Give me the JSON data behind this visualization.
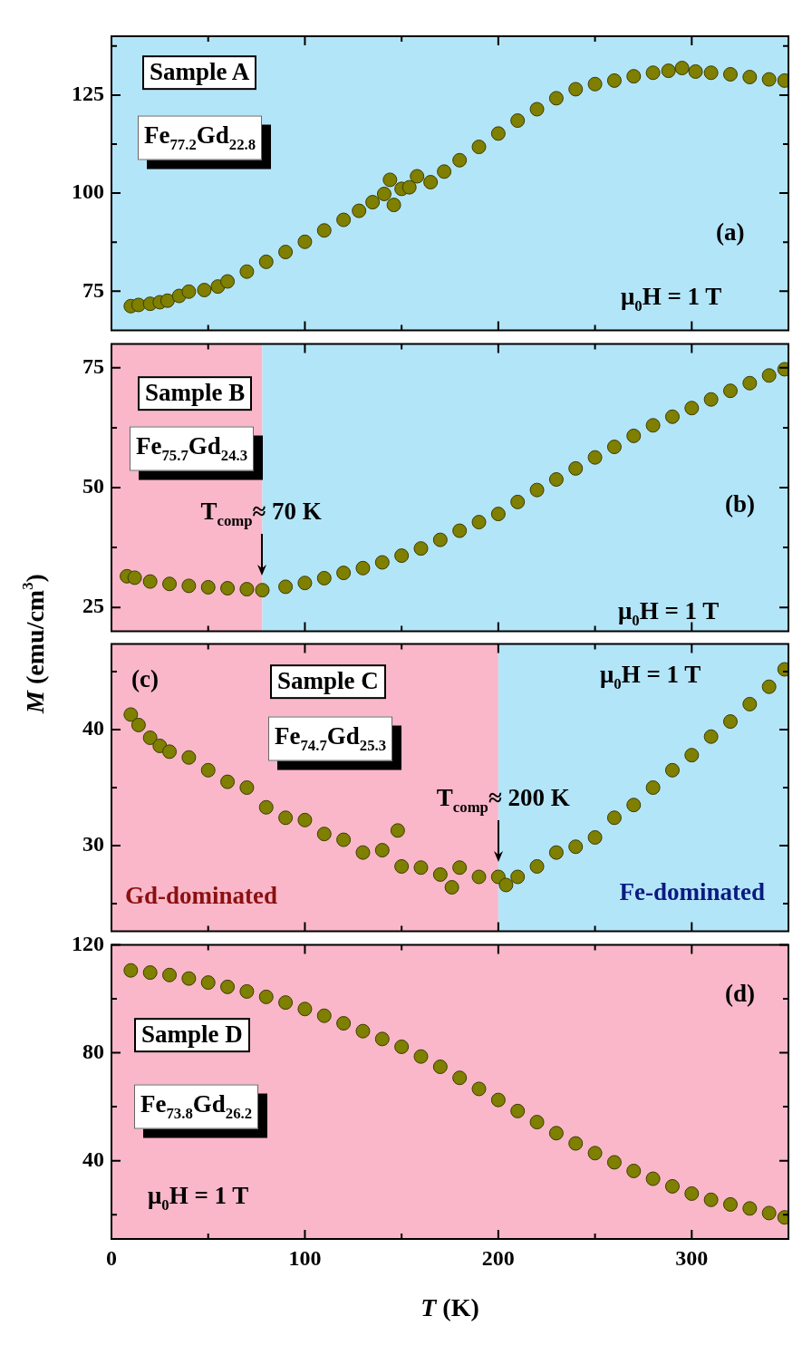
{
  "chart_data": [
    {
      "type": "scatter",
      "x": [
        10,
        14,
        20,
        25,
        29,
        35,
        40,
        48,
        55,
        60,
        70,
        80,
        90,
        100,
        110,
        120,
        128,
        135,
        141,
        144,
        146,
        150,
        154,
        158,
        165,
        172,
        180,
        190,
        200,
        210,
        220,
        230,
        240,
        250,
        260,
        270,
        280,
        288,
        295,
        302,
        310,
        320,
        330,
        340,
        348
      ],
      "series": [
        {
          "color": "#7f7f00",
          "values": [
            71.2,
            71.5,
            71.8,
            72.2,
            72.6,
            73.8,
            74.9,
            75.3,
            76.2,
            77.5,
            80.0,
            82.5,
            85.0,
            87.6,
            90.5,
            93.2,
            95.5,
            97.7,
            99.8,
            103.4,
            97.0,
            101.1,
            101.5,
            104.3,
            102.8,
            105.5,
            108.4,
            111.8,
            115.2,
            118.5,
            121.4,
            124.2,
            126.5,
            127.8,
            128.7,
            129.8,
            130.7,
            131.2,
            131.9,
            131.0,
            130.7,
            130.3,
            129.6,
            129.0,
            128.7
          ]
        }
      ],
      "xlim": [
        0,
        350
      ],
      "xticks": [
        0,
        {
          "value": 50,
          "label": null
        },
        100,
        {
          "value": 150,
          "label": null
        },
        200,
        {
          "value": 250,
          "label": null
        },
        300
      ],
      "ylim": [
        65,
        140
      ],
      "yticks": [
        75,
        {
          "value": 87.5,
          "label": null
        },
        100,
        {
          "value": 112.5,
          "label": null
        },
        125,
        {
          "value": 137.5,
          "label": null
        }
      ],
      "tick_labels": "y",
      "marker": "circle",
      "bands": [
        {
          "axis": "x",
          "from": 0,
          "to": 350,
          "color": "#b3e5f8"
        }
      ],
      "annotations": [
        "Sample A",
        "Fe$_{77.2}$Gd$_{22.8}$",
        "(a)",
        "μ$_{0}$H  = 1 T"
      ]
    },
    {
      "type": "scatter",
      "x": [
        8,
        12,
        20,
        30,
        40,
        50,
        60,
        70,
        78,
        90,
        100,
        110,
        120,
        130,
        140,
        150,
        160,
        170,
        180,
        190,
        200,
        210,
        220,
        230,
        240,
        250,
        260,
        270,
        280,
        290,
        300,
        310,
        320,
        330,
        340,
        348
      ],
      "series": [
        {
          "color": "#7f7f00",
          "values": [
            31.5,
            31.2,
            30.4,
            29.9,
            29.5,
            29.2,
            29.0,
            28.8,
            28.6,
            29.3,
            30.1,
            31.1,
            32.2,
            33.2,
            34.4,
            35.8,
            37.3,
            39.1,
            41.0,
            42.8,
            44.5,
            47.0,
            49.5,
            51.7,
            54.0,
            56.3,
            58.5,
            60.8,
            63.0,
            64.8,
            66.6,
            68.4,
            70.2,
            71.8,
            73.4,
            74.7
          ]
        }
      ],
      "xlim": [
        0,
        350
      ],
      "xticks": [
        0,
        {
          "value": 50,
          "label": null
        },
        100,
        {
          "value": 150,
          "label": null
        },
        200,
        {
          "value": 250,
          "label": null
        },
        300
      ],
      "ylim": [
        20,
        80
      ],
      "yticks": [
        25,
        {
          "value": 37.5,
          "label": null
        },
        50,
        {
          "value": 62.5,
          "label": null
        },
        75
      ],
      "tick_labels": "y",
      "marker": "circle",
      "bands": [
        {
          "axis": "x",
          "from": 0,
          "to": 78,
          "color": "#f9b7c9"
        },
        {
          "axis": "x",
          "from": 78,
          "to": 350,
          "color": "#b3e5f8"
        }
      ],
      "annotations": [
        "Sample B",
        "Fe$_{75.7}$Gd$_{24.3}$",
        "(b)",
        "μ$_{0}$H  = 1 T",
        {
          "text": "T$_{comp}$≈ 70 K",
          "x": 78,
          "y": 28.6
        }
      ]
    },
    {
      "type": "scatter",
      "x": [
        10,
        14,
        20,
        25,
        30,
        40,
        50,
        60,
        70,
        80,
        90,
        100,
        110,
        120,
        130,
        140,
        148,
        150,
        160,
        170,
        176,
        180,
        190,
        200,
        204,
        210,
        220,
        230,
        240,
        250,
        260,
        270,
        280,
        290,
        300,
        310,
        320,
        330,
        340,
        348
      ],
      "series": [
        {
          "color": "#7f7f00",
          "values": [
            41.3,
            40.4,
            39.3,
            38.6,
            38.1,
            37.6,
            36.5,
            35.5,
            35.0,
            33.3,
            32.4,
            32.2,
            31.0,
            30.5,
            29.4,
            29.6,
            31.3,
            28.2,
            28.1,
            27.5,
            26.4,
            28.1,
            27.3,
            27.3,
            26.6,
            27.3,
            28.2,
            29.4,
            29.9,
            30.7,
            32.4,
            33.5,
            35.0,
            36.5,
            37.8,
            39.4,
            40.7,
            42.2,
            43.7,
            45.2
          ]
        }
      ],
      "xlim": [
        0,
        350
      ],
      "xticks": [
        0,
        {
          "value": 50,
          "label": null
        },
        100,
        {
          "value": 150,
          "label": null
        },
        200,
        {
          "value": 250,
          "label": null
        },
        300
      ],
      "ylim": [
        22.6,
        47.4
      ],
      "yticks": [
        {
          "value": 25,
          "label": null
        },
        30,
        {
          "value": 35,
          "label": null
        },
        40,
        {
          "value": 45,
          "label": null
        }
      ],
      "tick_labels": "y",
      "marker": "circle",
      "ylabel": "M (emu/cm$^{3}$)",
      "bands": [
        {
          "axis": "x",
          "from": 0,
          "to": 200,
          "color": "#f9b7c9",
          "label": "Gd-dominated"
        },
        {
          "axis": "x",
          "from": 200,
          "to": 350,
          "color": "#b3e5f8",
          "label": "Fe-dominated"
        }
      ],
      "annotations": [
        "(c)",
        "Sample C",
        "Fe$_{74.7}$Gd$_{25.3}$",
        "μ$_{0}$H  = 1 T",
        {
          "text": "T$_{comp}$≈ 200 K",
          "x": 200,
          "y": 27.3
        }
      ]
    },
    {
      "type": "scatter",
      "x": [
        10,
        20,
        30,
        40,
        50,
        60,
        70,
        80,
        90,
        100,
        110,
        120,
        130,
        140,
        150,
        160,
        170,
        180,
        190,
        200,
        210,
        220,
        230,
        240,
        250,
        260,
        270,
        280,
        290,
        300,
        310,
        320,
        330,
        340,
        348
      ],
      "series": [
        {
          "color": "#7f7f00",
          "values": [
            110.5,
            109.7,
            108.8,
            107.5,
            106.0,
            104.4,
            102.7,
            100.7,
            98.6,
            96.2,
            93.7,
            90.9,
            88.0,
            85.1,
            82.2,
            78.6,
            74.8,
            70.7,
            66.6,
            62.5,
            58.4,
            54.3,
            50.2,
            46.4,
            42.8,
            39.4,
            36.2,
            33.3,
            30.5,
            27.8,
            25.5,
            23.8,
            22.3,
            20.6,
            19.0
          ]
        }
      ],
      "xlim": [
        0,
        350
      ],
      "xticks": [
        0,
        {
          "value": 50,
          "label": null
        },
        100,
        {
          "value": 150,
          "label": null
        },
        200,
        {
          "value": 250,
          "label": null
        },
        300
      ],
      "ylim": [
        11,
        120
      ],
      "yticks": [
        {
          "value": 20,
          "label": null
        },
        40,
        {
          "value": 60,
          "label": null
        },
        80,
        {
          "value": 100,
          "label": null
        },
        120
      ],
      "marker": "circle",
      "xlabel": "T (K)",
      "bands": [
        {
          "axis": "x",
          "from": 0,
          "to": 350,
          "color": "#f9b7c9"
        }
      ],
      "annotations": [
        "(d)",
        "Sample D",
        "Fe$_{73.8}$Gd$_{26.2}$",
        "μ$_{0}$H  = 1 T"
      ]
    }
  ]
}
